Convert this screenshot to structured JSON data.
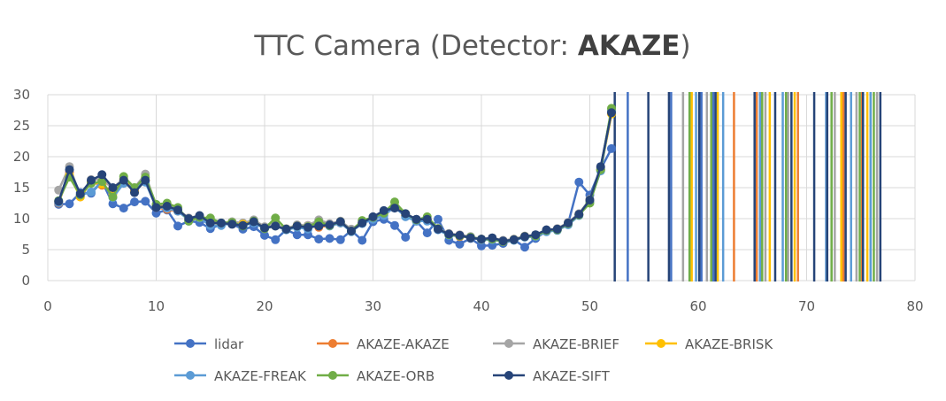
{
  "chart_data": {
    "type": "line",
    "title": "TTC Camera (Detector: AKAZE)",
    "title_prefix": "TTC Camera (Detector: ",
    "title_bold": "AKAZE",
    "title_suffix": ")",
    "xlabel": "",
    "ylabel": "",
    "xlim": [
      0,
      80
    ],
    "ylim": [
      0,
      30
    ],
    "x_ticks": [
      0,
      10,
      20,
      30,
      40,
      50,
      60,
      70,
      80
    ],
    "y_ticks": [
      0,
      5,
      10,
      15,
      20,
      25,
      30
    ],
    "grid": true,
    "legend_position": "bottom",
    "series": [
      {
        "name": "lidar",
        "color": "#4472c4",
        "x": [
          1,
          2,
          3,
          4,
          5,
          6,
          7,
          8,
          9,
          10,
          11,
          12,
          13,
          14,
          15,
          16,
          17,
          18,
          19,
          20,
          21,
          22,
          23,
          24,
          25,
          26,
          27,
          28,
          29,
          30,
          31,
          32,
          33,
          34,
          35,
          36,
          37,
          38,
          39,
          40,
          41,
          42,
          43,
          44,
          45,
          46,
          47,
          48,
          49,
          50,
          51,
          52
        ],
        "y": [
          12.3,
          12.4,
          14.2,
          14.1,
          16.0,
          12.4,
          11.7,
          12.7,
          12.8,
          10.9,
          11.4,
          8.8,
          9.6,
          9.4,
          8.4,
          9.1,
          9.1,
          8.3,
          8.7,
          7.3,
          6.6,
          8.2,
          7.4,
          7.4,
          6.7,
          6.8,
          6.6,
          8.1,
          6.5,
          9.5,
          9.9,
          8.9,
          7.0,
          9.6,
          7.7,
          9.9,
          6.5,
          5.9,
          6.8,
          5.6,
          5.7,
          6.0,
          6.6,
          5.4,
          6.8,
          8.0,
          8.2,
          9.2,
          15.9,
          13.8,
          18.0,
          21.3
        ]
      },
      {
        "name": "AKAZE-AKAZE",
        "color": "#ed7d31",
        "x": [
          1,
          2,
          3,
          4,
          5,
          6,
          7,
          8,
          9,
          10,
          11,
          12,
          13,
          14,
          15,
          16,
          17,
          18,
          19,
          20,
          21,
          22,
          23,
          24,
          25,
          26,
          27,
          28,
          29,
          30,
          31,
          32,
          33,
          34,
          35,
          36,
          37,
          38,
          39,
          40,
          41,
          42,
          43,
          44,
          45,
          46,
          47,
          48,
          49,
          50,
          51,
          52
        ],
        "y": [
          12.5,
          17.5,
          13.5,
          15.9,
          15.4,
          14.3,
          15.9,
          14.6,
          16.2,
          11.8,
          11.5,
          11.2,
          10.0,
          10.3,
          9.4,
          9.2,
          9.3,
          9.2,
          9.4,
          8.5,
          8.9,
          8.3,
          8.9,
          8.9,
          8.6,
          8.9,
          9.3,
          8.1,
          9.3,
          10.2,
          10.9,
          11.9,
          10.5,
          9.8,
          9.8,
          8.4,
          7.4,
          7.1,
          7.0,
          6.7,
          6.8,
          6.4,
          6.6,
          7.1,
          7.2,
          8.1,
          8.3,
          9.2,
          10.7,
          12.9,
          17.9,
          27.0
        ]
      },
      {
        "name": "AKAZE-BRIEF",
        "color": "#a5a5a5",
        "x": [
          1,
          2,
          3,
          4,
          5,
          6,
          7,
          8,
          9,
          10,
          11,
          12,
          13,
          14,
          15,
          16,
          17,
          18,
          19,
          20,
          21,
          22,
          23,
          24,
          25,
          26,
          27,
          28,
          29,
          30,
          31,
          32,
          33,
          34,
          35,
          36,
          37,
          38,
          39,
          40,
          41,
          42,
          43,
          44,
          45,
          46,
          47,
          48,
          49,
          50,
          51,
          52
        ],
        "y": [
          14.6,
          18.4,
          13.7,
          16.3,
          16.3,
          14.9,
          16.5,
          15.0,
          17.2,
          12.0,
          12.2,
          11.5,
          10.1,
          10.5,
          9.6,
          9.3,
          9.5,
          9.3,
          9.8,
          8.7,
          9.0,
          8.4,
          9.0,
          8.9,
          9.8,
          9.2,
          9.6,
          8.3,
          9.4,
          10.3,
          11.0,
          12.0,
          10.8,
          9.9,
          10.0,
          8.4,
          7.6,
          7.4,
          7.1,
          6.7,
          6.9,
          6.5,
          6.7,
          7.2,
          7.4,
          8.2,
          8.4,
          9.4,
          10.8,
          13.1,
          18.2,
          27.5
        ]
      },
      {
        "name": "AKAZE-BRISK",
        "color": "#ffc000",
        "x": [
          1,
          2,
          3,
          4,
          5,
          6,
          7,
          8,
          9,
          10,
          11,
          12,
          13,
          14,
          15,
          16,
          17,
          18,
          19,
          20,
          21,
          22,
          23,
          24,
          25,
          26,
          27,
          28,
          29,
          30,
          31,
          32,
          33,
          34,
          35,
          36,
          37,
          38,
          39,
          40,
          41,
          42,
          43,
          44,
          45,
          46,
          47,
          48,
          49,
          50,
          51,
          52
        ],
        "y": [
          12.8,
          17.0,
          13.5,
          15.9,
          15.6,
          14.0,
          16.4,
          14.3,
          16.2,
          11.9,
          12.0,
          11.3,
          9.8,
          10.3,
          9.5,
          9.1,
          9.2,
          9.1,
          9.5,
          8.4,
          8.8,
          8.3,
          8.8,
          8.6,
          9.0,
          8.9,
          9.4,
          8.0,
          9.3,
          10.1,
          10.8,
          12.0,
          10.5,
          9.7,
          9.8,
          8.3,
          7.4,
          7.2,
          6.9,
          6.6,
          6.7,
          6.3,
          6.6,
          7.1,
          7.2,
          8.1,
          8.2,
          9.2,
          10.6,
          12.8,
          17.8,
          26.9
        ]
      },
      {
        "name": "AKAZE-FREAK",
        "color": "#5b9bd5",
        "x": [
          1,
          2,
          3,
          4,
          5,
          6,
          7,
          8,
          9,
          10,
          11,
          12,
          13,
          14,
          15,
          16,
          17,
          18,
          19,
          20,
          21,
          22,
          23,
          24,
          25,
          26,
          27,
          28,
          29,
          30,
          31,
          32,
          33,
          34,
          35,
          36,
          37,
          38,
          39,
          40,
          41,
          42,
          43,
          44,
          45,
          46,
          47,
          48,
          49,
          50,
          51,
          52
        ],
        "y": [
          12.6,
          17.9,
          13.8,
          14.3,
          16.0,
          13.4,
          15.7,
          14.9,
          15.9,
          11.9,
          11.7,
          11.2,
          9.8,
          10.1,
          8.9,
          8.9,
          9.3,
          8.9,
          9.3,
          8.4,
          8.8,
          8.2,
          8.6,
          8.3,
          9.1,
          8.8,
          9.3,
          7.9,
          9.2,
          9.9,
          10.5,
          11.9,
          10.3,
          9.6,
          9.6,
          8.2,
          7.3,
          7.2,
          6.9,
          6.6,
          6.6,
          6.3,
          6.5,
          7.0,
          7.1,
          7.9,
          8.1,
          9.0,
          10.5,
          12.7,
          17.7,
          27.4
        ]
      },
      {
        "name": "AKAZE-ORB",
        "color": "#70ad47",
        "x": [
          1,
          2,
          3,
          4,
          5,
          6,
          7,
          8,
          9,
          10,
          11,
          12,
          13,
          14,
          15,
          16,
          17,
          18,
          19,
          20,
          21,
          22,
          23,
          24,
          25,
          26,
          27,
          28,
          29,
          30,
          31,
          32,
          33,
          34,
          35,
          36,
          37,
          38,
          39,
          40,
          41,
          42,
          43,
          44,
          45,
          46,
          47,
          48,
          49,
          50,
          51,
          52
        ],
        "y": [
          12.9,
          16.7,
          13.8,
          15.7,
          16.0,
          13.5,
          16.8,
          15.0,
          16.7,
          12.3,
          12.5,
          11.8,
          9.6,
          10.2,
          10.1,
          9.3,
          9.4,
          8.8,
          9.6,
          8.4,
          10.1,
          8.3,
          8.8,
          8.7,
          9.5,
          8.9,
          9.5,
          8.0,
          9.7,
          10.2,
          10.9,
          12.7,
          10.8,
          9.8,
          10.3,
          8.4,
          7.4,
          7.2,
          7.0,
          6.7,
          6.7,
          6.3,
          6.6,
          7.1,
          7.2,
          8.1,
          8.2,
          9.2,
          10.6,
          12.5,
          17.9,
          27.8
        ]
      },
      {
        "name": "AKAZE-SIFT",
        "color": "#264478",
        "x": [
          1,
          2,
          3,
          4,
          5,
          6,
          7,
          8,
          9,
          10,
          11,
          12,
          13,
          14,
          15,
          16,
          17,
          18,
          19,
          20,
          21,
          22,
          23,
          24,
          25,
          26,
          27,
          28,
          29,
          30,
          31,
          32,
          33,
          34,
          35,
          36,
          37,
          38,
          39,
          40,
          41,
          42,
          43,
          44,
          45,
          46,
          47,
          48,
          49,
          50,
          51,
          52
        ],
        "y": [
          12.8,
          17.9,
          14.0,
          16.2,
          17.1,
          15.0,
          16.2,
          14.2,
          16.2,
          11.8,
          12.0,
          11.4,
          10.0,
          10.5,
          9.3,
          9.3,
          9.1,
          8.9,
          9.5,
          8.5,
          8.8,
          8.3,
          8.8,
          8.6,
          8.8,
          9.0,
          9.5,
          8.0,
          9.3,
          10.3,
          11.3,
          11.7,
          10.8,
          9.9,
          9.9,
          8.3,
          7.5,
          7.3,
          6.9,
          6.7,
          6.9,
          6.4,
          6.6,
          7.1,
          7.4,
          8.2,
          8.3,
          9.3,
          10.7,
          13.0,
          18.4,
          27.1
        ]
      }
    ],
    "offscale_lines": [
      {
        "series": "lidar",
        "x": [
          53.5,
          57.5,
          60.3,
          61.4
        ]
      },
      {
        "series": "AKAZE-AKAZE",
        "x": [
          63.3,
          65.4,
          69.2,
          73.4,
          75.1
        ]
      },
      {
        "series": "AKAZE-BRIEF",
        "x": [
          58.6,
          60.8,
          66.2,
          68.3,
          72.6,
          74.6,
          76.5
        ]
      },
      {
        "series": "AKAZE-BRISK",
        "x": [
          59.4,
          61.8,
          66.6,
          68.9,
          73.2,
          75.6
        ]
      },
      {
        "series": "AKAZE-FREAK",
        "x": [
          59.8,
          62.3,
          65.7,
          67.8,
          71.8,
          74.1,
          75.9
        ]
      },
      {
        "series": "AKAZE-ORB",
        "x": [
          59.2,
          61.2,
          65.9,
          68.1,
          72.3,
          74.9,
          76.2
        ]
      },
      {
        "series": "AKAZE-SIFT",
        "x": [
          52.3,
          55.4,
          57.3,
          60.1,
          61.6,
          65.2,
          67.1,
          68.6,
          70.7,
          71.9,
          73.6,
          75.2,
          76.8
        ]
      }
    ]
  }
}
